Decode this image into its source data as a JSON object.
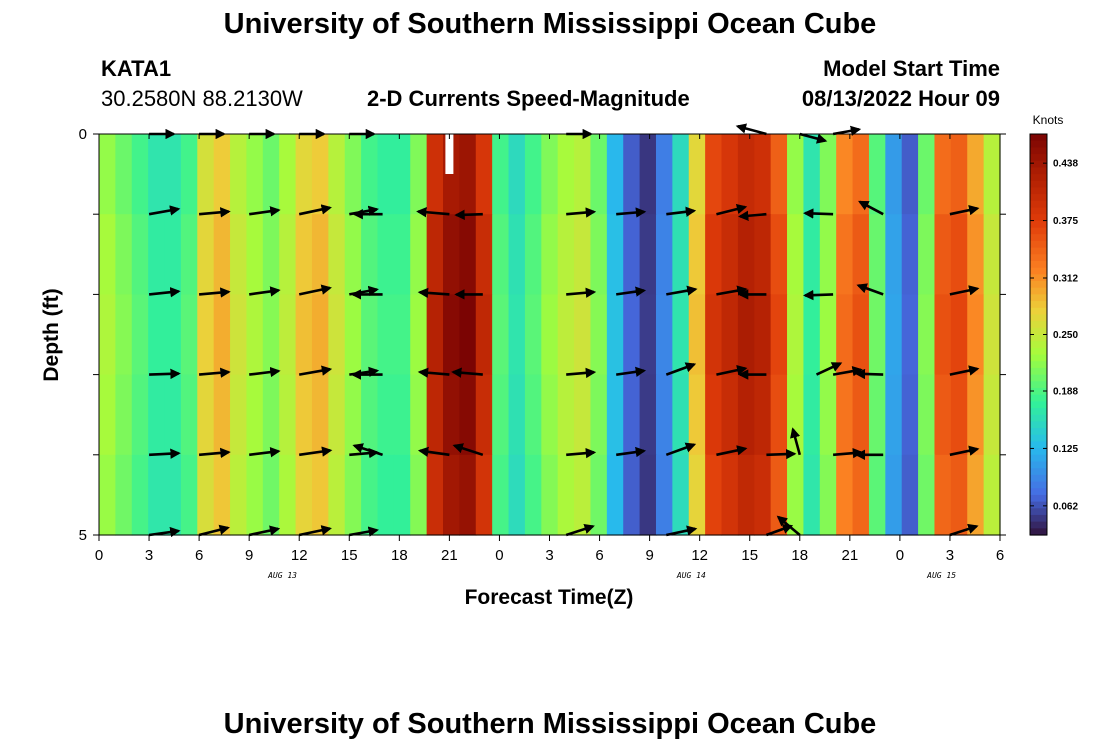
{
  "header": {
    "title": "University of Southern Mississippi Ocean Cube",
    "station_id": "KATA1",
    "coordinates": "30.2580N  88.2130W",
    "plot_name": "2-D Currents Speed-Magnitude",
    "model_start_label": "Model Start Time",
    "model_start_value": "08/13/2022 Hour 09"
  },
  "footer": {
    "title": "University of Southern Mississippi Ocean Cube"
  },
  "chart_data": {
    "type": "heatmap",
    "title": "2-D Currents Speed-Magnitude",
    "xlabel": "Forecast Time(Z)",
    "ylabel": "Depth (ft)",
    "ylim": [
      0,
      5
    ],
    "xlim_hours": [
      0,
      54
    ],
    "x_tick_labels": [
      "0",
      "3",
      "6",
      "9",
      "12",
      "15",
      "18",
      "21",
      "0",
      "3",
      "6",
      "9",
      "12",
      "15",
      "18",
      "21",
      "0",
      "3",
      "6"
    ],
    "y_tick_labels": [
      "0",
      "5"
    ],
    "date_labels": [
      {
        "label": "AUG 13",
        "hour": 11
      },
      {
        "label": "AUG 14",
        "hour": 35.5
      },
      {
        "label": "AUG 15",
        "hour": 50.5
      }
    ],
    "colorbar": {
      "label": "Knots",
      "min": 0.03,
      "max": 0.47,
      "ticks": [
        "0.062",
        "0.125",
        "0.188",
        "0.250",
        "0.312",
        "0.375",
        "0.438"
      ],
      "tick_values": [
        0.062,
        0.125,
        0.188,
        0.25,
        0.312,
        0.375,
        0.438
      ]
    },
    "columns_hours": [
      0,
      1,
      2,
      3,
      4,
      5,
      6,
      7,
      8,
      9,
      10,
      11,
      12,
      13,
      14,
      15,
      16,
      17,
      18,
      19,
      20,
      21,
      22,
      23,
      24,
      25,
      26,
      27,
      28,
      29,
      30,
      31,
      32,
      33,
      34,
      35,
      36,
      37,
      38,
      39,
      40,
      41,
      42,
      43,
      44,
      45,
      46,
      47,
      48,
      49,
      50,
      51,
      52,
      53,
      54
    ],
    "speed_profile": [
      0.23,
      0.21,
      0.19,
      0.17,
      0.17,
      0.19,
      0.27,
      0.29,
      0.25,
      0.23,
      0.21,
      0.24,
      0.28,
      0.29,
      0.25,
      0.22,
      0.19,
      0.18,
      0.18,
      0.22,
      0.41,
      0.45,
      0.46,
      0.4,
      0.19,
      0.16,
      0.19,
      0.22,
      0.24,
      0.25,
      0.21,
      0.13,
      0.07,
      0.05,
      0.09,
      0.16,
      0.28,
      0.38,
      0.4,
      0.42,
      0.41,
      0.36,
      0.23,
      0.17,
      0.22,
      0.33,
      0.35,
      0.2,
      0.11,
      0.07,
      0.21,
      0.35,
      0.36,
      0.31,
      0.25
    ],
    "depth_rows": 5,
    "depth_factors": [
      0.96,
      1.0,
      1.02,
      1.0,
      0.97
    ],
    "vectors": [
      {
        "hour": 3,
        "depth": 1,
        "speed": 0.18,
        "dir": 10
      },
      {
        "hour": 6,
        "depth": 1,
        "speed": 0.18,
        "dir": 5
      },
      {
        "hour": 9,
        "depth": 1,
        "speed": 0.18,
        "dir": 8
      },
      {
        "hour": 12,
        "depth": 1,
        "speed": 0.19,
        "dir": 12
      },
      {
        "hour": 15,
        "depth": 1,
        "speed": 0.17,
        "dir": 10
      },
      {
        "hour": 17,
        "depth": 1,
        "speed": 0.17,
        "dir": 180
      },
      {
        "hour": 21,
        "depth": 1,
        "speed": 0.19,
        "dir": 175
      },
      {
        "hour": 23,
        "depth": 1,
        "speed": 0.16,
        "dir": 182
      },
      {
        "hour": 28,
        "depth": 1,
        "speed": 0.17,
        "dir": 5
      },
      {
        "hour": 31,
        "depth": 1,
        "speed": 0.17,
        "dir": 5
      },
      {
        "hour": 34,
        "depth": 1,
        "speed": 0.17,
        "dir": 7
      },
      {
        "hour": 37,
        "depth": 1,
        "speed": 0.18,
        "dir": 14
      },
      {
        "hour": 40,
        "depth": 1,
        "speed": 0.16,
        "dir": 185
      },
      {
        "hour": 44,
        "depth": 1,
        "speed": 0.17,
        "dir": 178
      },
      {
        "hour": 47,
        "depth": 1,
        "speed": 0.16,
        "dir": 152
      },
      {
        "hour": 51,
        "depth": 1,
        "speed": 0.17,
        "dir": 12
      },
      {
        "hour": 3,
        "depth": 2,
        "speed": 0.18,
        "dir": 6
      },
      {
        "hour": 6,
        "depth": 2,
        "speed": 0.18,
        "dir": 5
      },
      {
        "hour": 9,
        "depth": 2,
        "speed": 0.18,
        "dir": 8
      },
      {
        "hour": 12,
        "depth": 2,
        "speed": 0.19,
        "dir": 12
      },
      {
        "hour": 15,
        "depth": 2,
        "speed": 0.17,
        "dir": 10
      },
      {
        "hour": 17,
        "depth": 2,
        "speed": 0.18,
        "dir": 180
      },
      {
        "hour": 21,
        "depth": 2,
        "speed": 0.18,
        "dir": 176
      },
      {
        "hour": 23,
        "depth": 2,
        "speed": 0.16,
        "dir": 180
      },
      {
        "hour": 28,
        "depth": 2,
        "speed": 0.17,
        "dir": 5
      },
      {
        "hour": 31,
        "depth": 2,
        "speed": 0.17,
        "dir": 8
      },
      {
        "hour": 34,
        "depth": 2,
        "speed": 0.18,
        "dir": 10
      },
      {
        "hour": 37,
        "depth": 2,
        "speed": 0.18,
        "dir": 10
      },
      {
        "hour": 40,
        "depth": 2,
        "speed": 0.16,
        "dir": 180
      },
      {
        "hour": 44,
        "depth": 2,
        "speed": 0.17,
        "dir": 182
      },
      {
        "hour": 47,
        "depth": 2,
        "speed": 0.16,
        "dir": 160
      },
      {
        "hour": 51,
        "depth": 2,
        "speed": 0.17,
        "dir": 12
      },
      {
        "hour": 3,
        "depth": 3,
        "speed": 0.18,
        "dir": 2
      },
      {
        "hour": 6,
        "depth": 3,
        "speed": 0.18,
        "dir": 5
      },
      {
        "hour": 9,
        "depth": 3,
        "speed": 0.18,
        "dir": 7
      },
      {
        "hour": 12,
        "depth": 3,
        "speed": 0.19,
        "dir": 10
      },
      {
        "hour": 15,
        "depth": 3,
        "speed": 0.17,
        "dir": 8
      },
      {
        "hour": 17,
        "depth": 3,
        "speed": 0.18,
        "dir": 180
      },
      {
        "hour": 21,
        "depth": 3,
        "speed": 0.18,
        "dir": 175
      },
      {
        "hour": 23,
        "depth": 3,
        "speed": 0.18,
        "dir": 175
      },
      {
        "hour": 28,
        "depth": 3,
        "speed": 0.17,
        "dir": 5
      },
      {
        "hour": 31,
        "depth": 3,
        "speed": 0.17,
        "dir": 8
      },
      {
        "hour": 34,
        "depth": 3,
        "speed": 0.18,
        "dir": 20
      },
      {
        "hour": 37,
        "depth": 3,
        "speed": 0.18,
        "dir": 12
      },
      {
        "hour": 40,
        "depth": 3,
        "speed": 0.16,
        "dir": 180
      },
      {
        "hour": 43,
        "depth": 3,
        "speed": 0.16,
        "dir": 25
      },
      {
        "hour": 44,
        "depth": 3,
        "speed": 0.17,
        "dir": 10
      },
      {
        "hour": 47,
        "depth": 3,
        "speed": 0.16,
        "dir": 178
      },
      {
        "hour": 51,
        "depth": 3,
        "speed": 0.17,
        "dir": 12
      },
      {
        "hour": 3,
        "depth": 4,
        "speed": 0.18,
        "dir": 3
      },
      {
        "hour": 6,
        "depth": 4,
        "speed": 0.18,
        "dir": 5
      },
      {
        "hour": 9,
        "depth": 4,
        "speed": 0.18,
        "dir": 7
      },
      {
        "hour": 12,
        "depth": 4,
        "speed": 0.19,
        "dir": 8
      },
      {
        "hour": 15,
        "depth": 4,
        "speed": 0.17,
        "dir": 5
      },
      {
        "hour": 17,
        "depth": 4,
        "speed": 0.18,
        "dir": 162
      },
      {
        "hour": 21,
        "depth": 4,
        "speed": 0.18,
        "dir": 172
      },
      {
        "hour": 23,
        "depth": 4,
        "speed": 0.18,
        "dir": 162
      },
      {
        "hour": 28,
        "depth": 4,
        "speed": 0.17,
        "dir": 5
      },
      {
        "hour": 31,
        "depth": 4,
        "speed": 0.17,
        "dir": 8
      },
      {
        "hour": 34,
        "depth": 4,
        "speed": 0.18,
        "dir": 20
      },
      {
        "hour": 37,
        "depth": 4,
        "speed": 0.18,
        "dir": 12
      },
      {
        "hour": 40,
        "depth": 4,
        "speed": 0.17,
        "dir": 2
      },
      {
        "hour": 42,
        "depth": 4,
        "speed": 0.16,
        "dir": 105
      },
      {
        "hour": 44,
        "depth": 4,
        "speed": 0.17,
        "dir": 5
      },
      {
        "hour": 47,
        "depth": 4,
        "speed": 0.16,
        "dir": 180
      },
      {
        "hour": 51,
        "depth": 4,
        "speed": 0.17,
        "dir": 12
      },
      {
        "hour": 3,
        "depth": 5,
        "speed": 0.18,
        "dir": 8
      },
      {
        "hour": 6,
        "depth": 5,
        "speed": 0.18,
        "dir": 14
      },
      {
        "hour": 9,
        "depth": 5,
        "speed": 0.18,
        "dir": 12
      },
      {
        "hour": 12,
        "depth": 5,
        "speed": 0.19,
        "dir": 12
      },
      {
        "hour": 15,
        "depth": 5,
        "speed": 0.17,
        "dir": 10
      },
      {
        "hour": 28,
        "depth": 5,
        "speed": 0.17,
        "dir": 18
      },
      {
        "hour": 34,
        "depth": 5,
        "speed": 0.18,
        "dir": 12
      },
      {
        "hour": 40,
        "depth": 5,
        "speed": 0.16,
        "dir": 20
      },
      {
        "hour": 42,
        "depth": 5,
        "speed": 0.17,
        "dir": 140
      },
      {
        "hour": 51,
        "depth": 5,
        "speed": 0.17,
        "dir": 18
      },
      {
        "hour": 3,
        "depth": 0,
        "speed": 0.15,
        "dir": 0
      },
      {
        "hour": 6,
        "depth": 0,
        "speed": 0.15,
        "dir": 0
      },
      {
        "hour": 9,
        "depth": 0,
        "speed": 0.15,
        "dir": 0
      },
      {
        "hour": 12,
        "depth": 0,
        "speed": 0.15,
        "dir": 0
      },
      {
        "hour": 15,
        "depth": 0,
        "speed": 0.15,
        "dir": 0
      },
      {
        "hour": 28,
        "depth": 0,
        "speed": 0.15,
        "dir": 0
      },
      {
        "hour": 40,
        "depth": 0,
        "speed": 0.18,
        "dir": 165
      },
      {
        "hour": 42,
        "depth": 0,
        "speed": 0.16,
        "dir": -15
      },
      {
        "hour": 44,
        "depth": 0,
        "speed": 0.16,
        "dir": 10
      }
    ],
    "missing_data": [
      {
        "hour": 21,
        "depth": 0
      }
    ]
  },
  "colors": {
    "background": "#ffffff",
    "axis": "#000000",
    "arrow": "#000000",
    "missing": "#ffffff"
  }
}
